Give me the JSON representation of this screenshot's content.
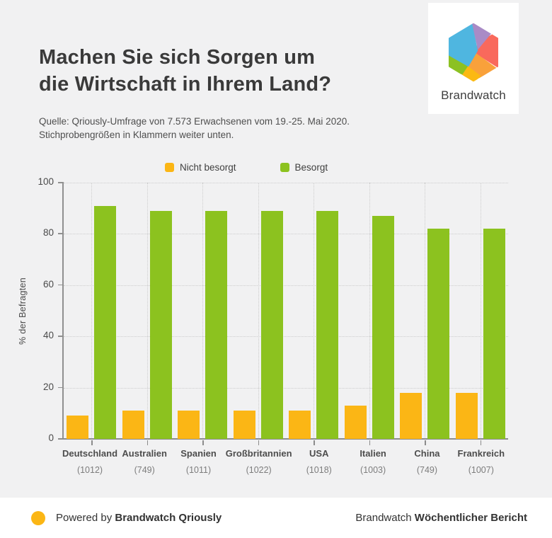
{
  "page": {
    "background": "#F1F1F2"
  },
  "header": {
    "title_line1": "Machen Sie sich Sorgen um",
    "title_line2": "die Wirtschaft in Ihrem Land?",
    "source_line1": "Quelle: Qriously-Umfrage von 7.573 Erwachsenen vom 19.-25. Mai 2020.",
    "source_line2": "Stichprobengrößen in Klammern weiter unten."
  },
  "logo": {
    "brand": "Brandwatch",
    "colors": {
      "blue": "#4FB6E0",
      "purple": "#A98BC6",
      "red": "#F9695C",
      "orange": "#F9A13B",
      "yellow": "#FBB912",
      "green": "#8CC122"
    }
  },
  "chart_data": {
    "type": "bar",
    "title": "Machen Sie sich Sorgen um die Wirtschaft in Ihrem Land?",
    "xlabel": "",
    "ylabel": "% der Befragten",
    "ylim": [
      0,
      100
    ],
    "yticks": [
      0,
      20,
      40,
      60,
      80,
      100
    ],
    "grid": "dotted",
    "legend_position": "top",
    "categories": [
      "Deutschland",
      "Australien",
      "Spanien",
      "Großbritannien",
      "USA",
      "Italien",
      "China",
      "Frankreich"
    ],
    "sample_sizes": [
      "(1012)",
      "(749)",
      "(1011)",
      "(1022)",
      "(1018)",
      "(1003)",
      "(749)",
      "(1007)"
    ],
    "series": [
      {
        "name": "Nicht besorgt",
        "color": "#FBB615",
        "values": [
          9,
          11,
          11,
          11,
          11,
          13,
          18,
          18
        ]
      },
      {
        "name": "Besorgt",
        "color": "#8CC21F",
        "values": [
          91,
          89,
          89,
          89,
          89,
          87,
          82,
          82
        ]
      }
    ]
  },
  "footer": {
    "dot_color": "#FBB615",
    "powered_prefix": "Powered by",
    "powered_brand": "Brandwatch Qriously",
    "right_prefix": "Brandwatch",
    "right_bold": "Wöchentlicher Bericht"
  }
}
